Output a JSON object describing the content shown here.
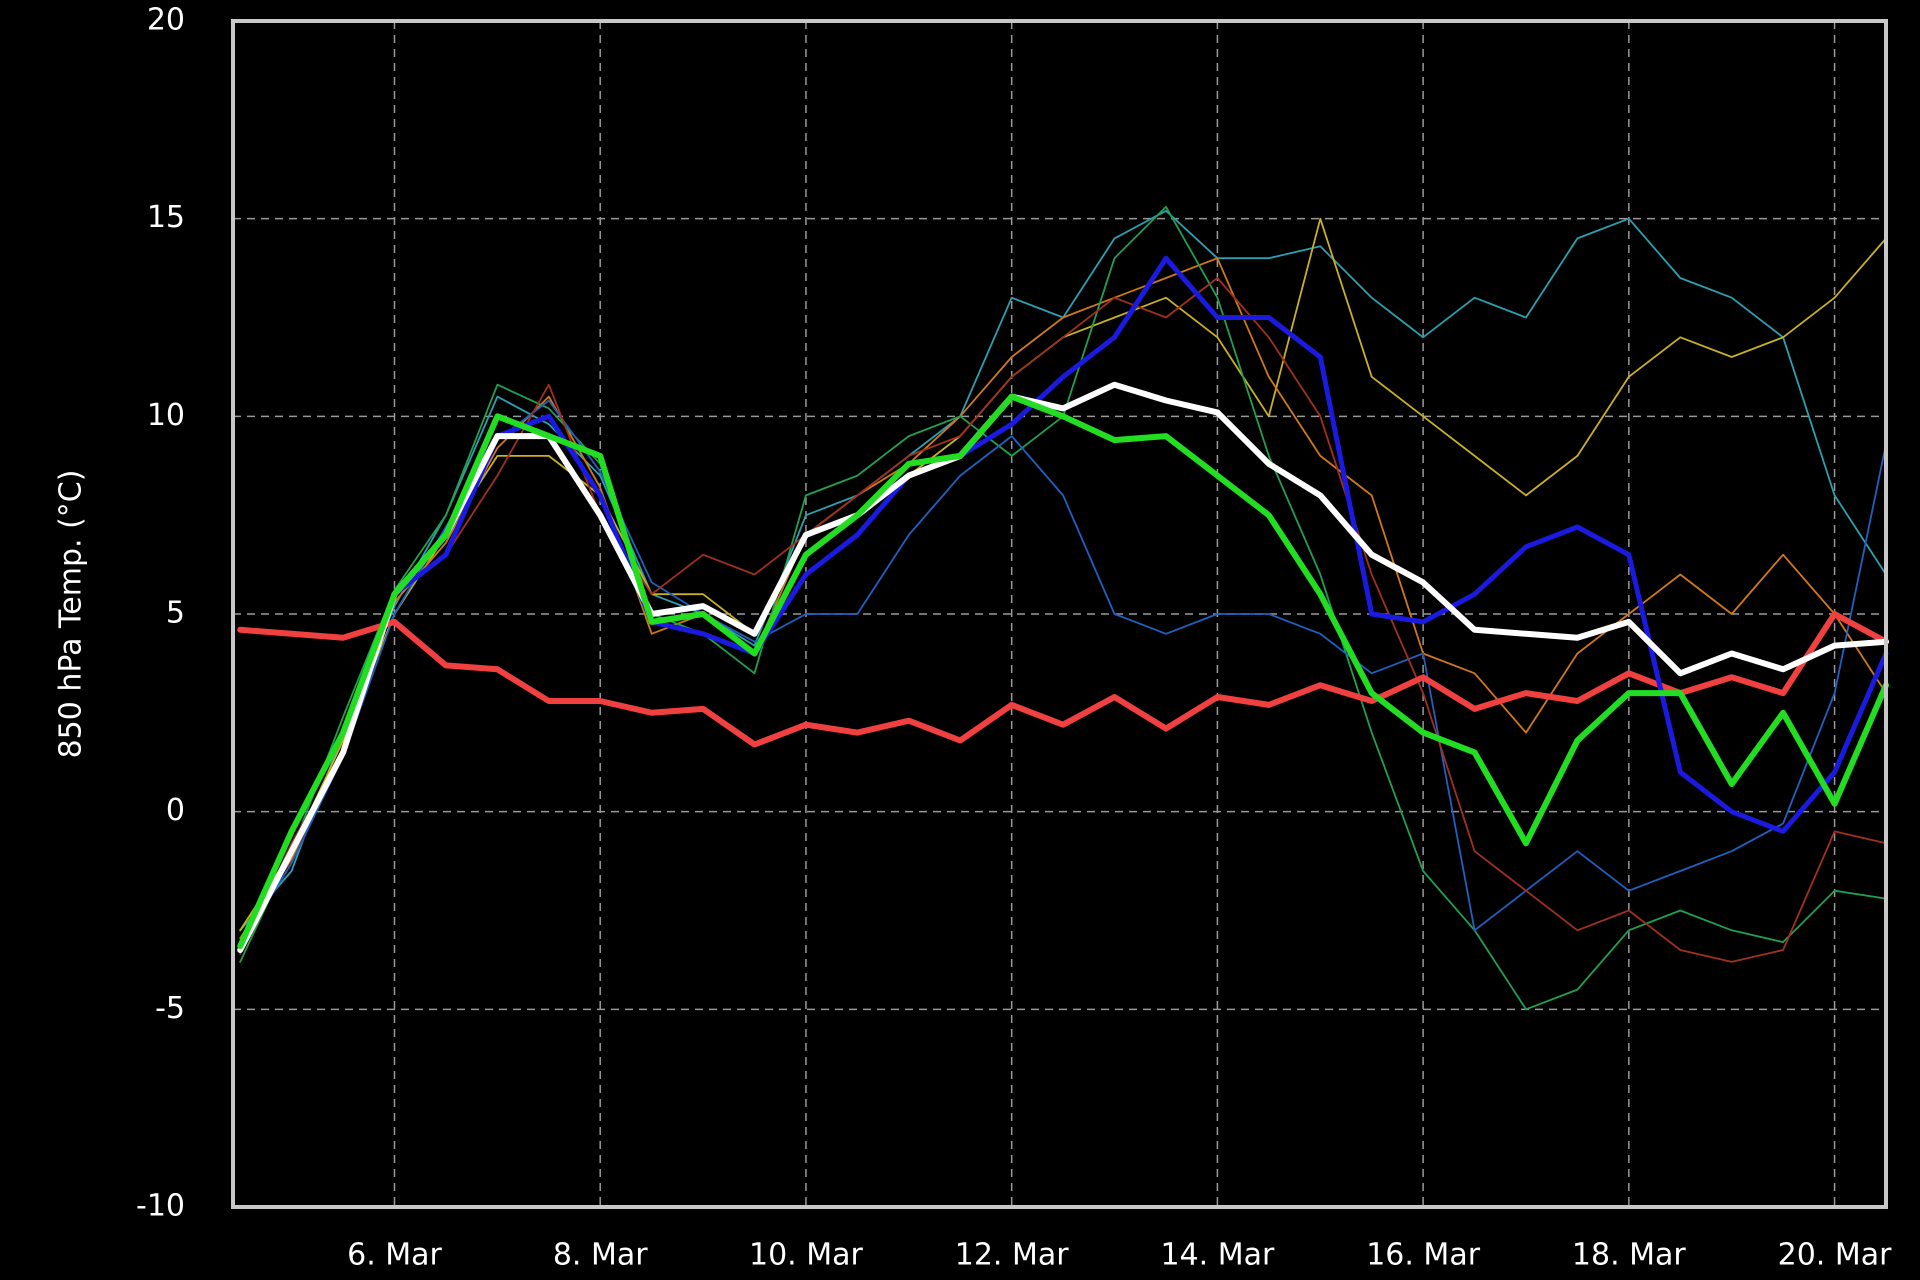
{
  "chart_data": {
    "type": "line",
    "y_label": "850 hPa Temp. (°C)",
    "x": [
      4.5,
      5,
      5.5,
      6,
      6.5,
      7,
      7.5,
      8,
      8.5,
      9,
      9.5,
      10,
      10.5,
      11,
      11.5,
      12,
      12.5,
      13,
      13.5,
      14,
      14.5,
      15,
      15.5,
      16,
      16.5,
      17,
      17.5,
      18,
      18.5,
      19,
      19.5,
      20,
      20.5
    ],
    "xlim": [
      4.43,
      20.5
    ],
    "xticks": [
      {
        "value": 6,
        "label": "6. Mar"
      },
      {
        "value": 8,
        "label": "8. Mar"
      },
      {
        "value": 10,
        "label": "10. Mar"
      },
      {
        "value": 12,
        "label": "12. Mar"
      },
      {
        "value": 14,
        "label": "14. Mar"
      },
      {
        "value": 16,
        "label": "16. Mar"
      },
      {
        "value": 18,
        "label": "18. Mar"
      },
      {
        "value": 20,
        "label": "20. Mar"
      }
    ],
    "ylim": [
      -10,
      20
    ],
    "yticks": [
      -10,
      -5,
      0,
      5,
      10,
      15,
      20
    ],
    "grid": true,
    "series": [
      {
        "color": "#2aa0b0",
        "width": 1.8,
        "values": [
          -3,
          -1.5,
          2,
          5.2,
          7.5,
          10.5,
          9.8,
          8.5,
          5.5,
          5,
          4.2,
          7.5,
          8,
          9,
          10,
          13,
          12.5,
          14.5,
          15.2,
          14,
          14,
          14.3,
          13,
          12,
          13,
          12.5,
          14.5,
          15,
          13.5,
          13,
          12,
          8,
          6
        ]
      },
      {
        "color": "#c8b020",
        "width": 1.8,
        "values": [
          -3,
          -1,
          1.8,
          5,
          7,
          9,
          9,
          8,
          5.5,
          5.5,
          4.5,
          7,
          7.5,
          8.5,
          9.5,
          11,
          12,
          12.5,
          13,
          12,
          10,
          15,
          11,
          10,
          9,
          8,
          9,
          11,
          12,
          11.5,
          12,
          13,
          14.5
        ]
      },
      {
        "color": "#d07818",
        "width": 1.8,
        "values": [
          -3.2,
          -1.2,
          1.6,
          5.3,
          6.8,
          9.2,
          10.5,
          8.2,
          4.5,
          5,
          4,
          7,
          8,
          8.8,
          10,
          11.5,
          12.5,
          13,
          13.5,
          14,
          11,
          9,
          8,
          4,
          3.5,
          2,
          4,
          5,
          6,
          5,
          6.5,
          5,
          3
        ]
      },
      {
        "color": "#20a050",
        "width": 1.8,
        "values": [
          -3.8,
          -1,
          2.4,
          5.6,
          7.5,
          10.8,
          10.2,
          8.8,
          5,
          4.5,
          3.5,
          8,
          8.5,
          9.5,
          10,
          9,
          10,
          14,
          15.3,
          13,
          9,
          6,
          2,
          -1.5,
          -3,
          -5,
          -4.5,
          -3,
          -2.5,
          -3,
          -3.3,
          -2,
          -2.2
        ]
      },
      {
        "color": "#2060c0",
        "width": 1.8,
        "values": [
          -3.4,
          -1.3,
          1.4,
          5,
          7.2,
          9.4,
          10.4,
          8.6,
          5.8,
          5,
          4.3,
          5,
          5,
          7,
          8.5,
          9.5,
          8,
          5,
          4.5,
          5,
          5,
          4.5,
          3.5,
          4,
          -3,
          -2,
          -1,
          -2,
          -1.5,
          -1,
          -0.3,
          3,
          9.3
        ]
      },
      {
        "color": "#a03020",
        "width": 1.8,
        "values": [
          -3.6,
          -0.8,
          1.5,
          5.5,
          6.5,
          8.5,
          10.8,
          7.5,
          5.5,
          6.5,
          6,
          7,
          8,
          9,
          9.5,
          11,
          12,
          13,
          12.5,
          13.5,
          12,
          10,
          6,
          3,
          -1,
          -2,
          -3,
          -2.5,
          -3.5,
          -3.8,
          -3.5,
          -0.5,
          -0.8
        ]
      },
      {
        "color": "#f04040",
        "width": 6,
        "values": [
          4.6,
          4.5,
          4.4,
          4.8,
          3.7,
          3.6,
          2.8,
          2.8,
          2.5,
          2.6,
          1.7,
          2.2,
          2.0,
          2.3,
          1.8,
          2.7,
          2.2,
          2.9,
          2.1,
          2.9,
          2.7,
          3.2,
          2.8,
          3.4,
          2.6,
          3.0,
          2.8,
          3.5,
          3.0,
          3.4,
          3.0,
          5.0,
          4.3
        ]
      },
      {
        "color": "#1a1ae0",
        "width": 5,
        "values": [
          -3.5,
          -1,
          1.5,
          5.5,
          6.5,
          9.5,
          10,
          8,
          4.8,
          4.5,
          4,
          6,
          7,
          8.5,
          9,
          9.8,
          11,
          12,
          14,
          12.5,
          12.5,
          11.5,
          5,
          4.8,
          5.5,
          6.7,
          7.2,
          6.5,
          1,
          0,
          -0.5,
          1,
          4
        ]
      },
      {
        "color": "#ffffff",
        "width": 6,
        "values": [
          -3.5,
          -1,
          1.5,
          5.5,
          7,
          9.5,
          9.5,
          7.5,
          5,
          5.2,
          4.5,
          7,
          7.5,
          8.5,
          9,
          10.5,
          10.2,
          10.8,
          10.4,
          10.1,
          8.8,
          8,
          6.5,
          5.8,
          4.6,
          4.5,
          4.4,
          4.8,
          3.5,
          4,
          3.6,
          4.2,
          4.3
        ]
      },
      {
        "color": "#22dd22",
        "width": 6,
        "values": [
          -3.4,
          -0.5,
          2,
          5.5,
          7,
          10,
          9.5,
          9,
          4.8,
          5,
          4,
          6.5,
          7.5,
          8.8,
          9,
          10.5,
          10,
          9.4,
          9.5,
          8.5,
          7.5,
          5.5,
          3,
          2,
          1.5,
          -0.8,
          1.8,
          3,
          3,
          0.7,
          2.5,
          0.2,
          3.2
        ]
      }
    ]
  }
}
